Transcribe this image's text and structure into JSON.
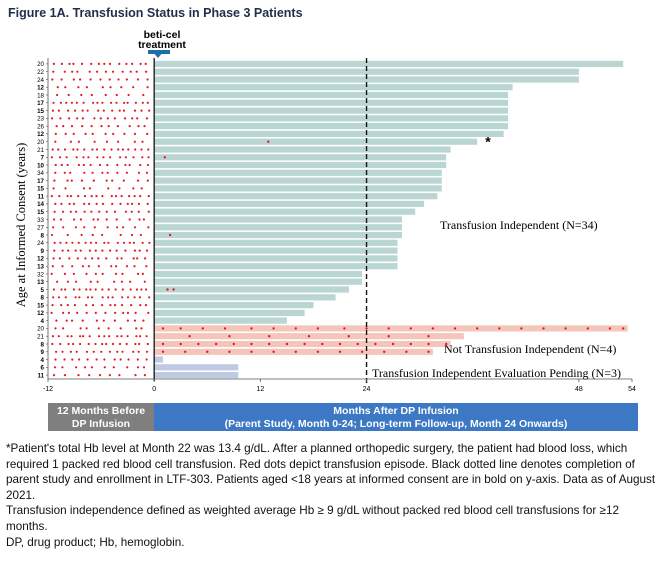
{
  "figure_title": "Figure 1A. Transfusion Status in Phase 3 Patients",
  "treatment_label_line1": "beti-cel",
  "treatment_label_line2": "treatment",
  "bands": {
    "before_line1": "12 Months Before",
    "before_line2": "DP Infusion",
    "after_line1": "Months After DP Infusion",
    "after_line2": "(Parent Study, Month 0-24; Long-term Follow-up, Month 24 Onwards)"
  },
  "footnotes": [
    "*Patient's total Hb level at Month 22 was 13.4 g/dL. After a planned orthopedic surgery, the patient had blood loss, which required 1 packed red blood cell transfusion. Red dots depict transfusion episode. Black dotted line denotes completion of parent study and enrollment in LTF-303. Patients aged <18 years at informed consent are in bold on y-axis. Data as of August 2021.",
    "Transfusion independence defined as weighted average Hb ≥ 9 g/dL without packed red blood cell transfusions for ≥12 months.",
    "DP, drug product; Hb, hemoglobin."
  ],
  "colors": {
    "ti": "#b9d6d3",
    "nti": "#f4c6bb",
    "pending": "#bfcbe3",
    "dot": "#e31a1c",
    "arrow": "#1e6fa8",
    "band_before": "#7f7f7f",
    "band_after": "#3c78c3",
    "title": "#1f2f4a"
  },
  "chart_data": {
    "type": "bar",
    "orientation": "horizontal",
    "ylabel": "Age at Informed Consent (years)",
    "xlim": [
      -12,
      54
    ],
    "xticks": [
      -12,
      0,
      12,
      24,
      48,
      54
    ],
    "reference_line_x": 24,
    "star_annotation": "*",
    "groups": [
      {
        "name": "Transfusion Independent (N=34)",
        "status": "ti",
        "label": "Transfusion Independent (N=34)"
      },
      {
        "name": "Not Transfusion Independent (N=4)",
        "status": "nti",
        "label": "Not Transfusion Independent (N=4)"
      },
      {
        "name": "Transfusion Independent Evaluation Pending (N=3)",
        "status": "pending",
        "label": "Transfusion Independent Evaluation Pending (N=3)"
      }
    ],
    "patients": [
      {
        "age": "20",
        "bold": false,
        "months": 53,
        "status": "ti"
      },
      {
        "age": "22",
        "bold": false,
        "months": 48,
        "status": "ti"
      },
      {
        "age": "24",
        "bold": false,
        "months": 48,
        "status": "ti"
      },
      {
        "age": "12",
        "bold": true,
        "months": 40.5,
        "status": "ti"
      },
      {
        "age": "18",
        "bold": false,
        "months": 40,
        "status": "ti"
      },
      {
        "age": "17",
        "bold": true,
        "months": 40,
        "status": "ti"
      },
      {
        "age": "15",
        "bold": true,
        "months": 40,
        "status": "ti"
      },
      {
        "age": "23",
        "bold": false,
        "months": 40,
        "status": "ti"
      },
      {
        "age": "26",
        "bold": false,
        "months": 40,
        "status": "ti"
      },
      {
        "age": "12",
        "bold": true,
        "months": 39.5,
        "status": "ti"
      },
      {
        "age": "20",
        "bold": false,
        "months": 36.5,
        "status": "ti",
        "star": true,
        "post_dots": [
          12.9
        ]
      },
      {
        "age": "21",
        "bold": false,
        "months": 33.5,
        "status": "ti"
      },
      {
        "age": "7",
        "bold": true,
        "months": 33,
        "status": "ti",
        "post_dots": [
          1.2
        ]
      },
      {
        "age": "10",
        "bold": true,
        "months": 33,
        "status": "ti"
      },
      {
        "age": "34",
        "bold": false,
        "months": 32.5,
        "status": "ti"
      },
      {
        "age": "17",
        "bold": true,
        "months": 32.5,
        "status": "ti"
      },
      {
        "age": "15",
        "bold": true,
        "months": 32.5,
        "status": "ti"
      },
      {
        "age": "11",
        "bold": true,
        "months": 32,
        "status": "ti"
      },
      {
        "age": "14",
        "bold": true,
        "months": 30.5,
        "status": "ti"
      },
      {
        "age": "15",
        "bold": true,
        "months": 29.5,
        "status": "ti"
      },
      {
        "age": "33",
        "bold": false,
        "months": 28,
        "status": "ti"
      },
      {
        "age": "27",
        "bold": false,
        "months": 28,
        "status": "ti"
      },
      {
        "age": "8",
        "bold": true,
        "months": 28,
        "status": "ti",
        "post_dots": [
          1.8
        ]
      },
      {
        "age": "24",
        "bold": false,
        "months": 27.5,
        "status": "ti"
      },
      {
        "age": "9",
        "bold": true,
        "months": 27.5,
        "status": "ti"
      },
      {
        "age": "12",
        "bold": true,
        "months": 27.5,
        "status": "ti"
      },
      {
        "age": "13",
        "bold": true,
        "months": 27.5,
        "status": "ti"
      },
      {
        "age": "32",
        "bold": false,
        "months": 23.5,
        "status": "ti"
      },
      {
        "age": "13",
        "bold": true,
        "months": 23.5,
        "status": "ti"
      },
      {
        "age": "5",
        "bold": true,
        "months": 22,
        "status": "ti",
        "post_dots": [
          1.5,
          2.2
        ]
      },
      {
        "age": "8",
        "bold": true,
        "months": 20.5,
        "status": "ti"
      },
      {
        "age": "15",
        "bold": true,
        "months": 18,
        "status": "ti"
      },
      {
        "age": "12",
        "bold": true,
        "months": 17,
        "status": "ti"
      },
      {
        "age": "4",
        "bold": true,
        "months": 15,
        "status": "ti"
      },
      {
        "age": "20",
        "bold": false,
        "months": 53.5,
        "status": "nti",
        "post_dots": [
          1,
          3,
          5.5,
          8,
          11,
          13.5,
          16,
          18.5,
          21.5,
          24,
          26.5,
          29,
          31.5,
          34,
          36.5,
          39,
          41.5,
          44,
          46.5,
          49,
          51.5,
          53
        ]
      },
      {
        "age": "21",
        "bold": false,
        "months": 35,
        "status": "nti",
        "post_dots": [
          4,
          8.5,
          13,
          17.5,
          22,
          26.5,
          31
        ]
      },
      {
        "age": "8",
        "bold": true,
        "months": 33.5,
        "status": "nti",
        "post_dots": [
          1,
          3,
          5,
          7,
          9,
          11,
          13,
          15,
          17,
          19,
          21,
          23,
          25,
          27,
          29,
          31,
          33
        ]
      },
      {
        "age": "9",
        "bold": true,
        "months": 31.5,
        "status": "nti",
        "post_dots": [
          1,
          3.5,
          6,
          8.5,
          11,
          13.5,
          16,
          18.5,
          21,
          23.5,
          26,
          28.5,
          31
        ]
      },
      {
        "age": "4",
        "bold": true,
        "months": 1,
        "status": "pending"
      },
      {
        "age": "6",
        "bold": true,
        "months": 9.5,
        "status": "pending"
      },
      {
        "age": "11",
        "bold": true,
        "months": 9.5,
        "status": "pending"
      }
    ]
  }
}
